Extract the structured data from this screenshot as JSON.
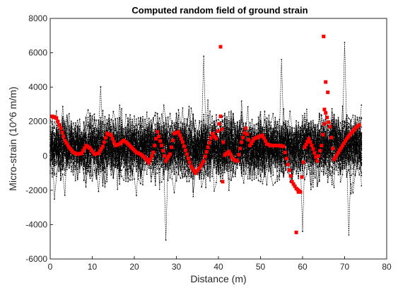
{
  "chart_data": {
    "type": "scatter",
    "title": "Computed random field of ground strain",
    "xlabel": "Distance (m)",
    "ylabel": "Micro-strain (10^6 m/m)",
    "xlim": [
      0,
      80
    ],
    "ylim": [
      -6000,
      8000
    ],
    "x_ticks": [
      0,
      10,
      20,
      30,
      40,
      50,
      60,
      70,
      80
    ],
    "y_ticks": [
      -6000,
      -4000,
      -2000,
      0,
      2000,
      4000,
      6000,
      8000
    ],
    "x_tick_labels": [
      "0",
      "10",
      "20",
      "30",
      "40",
      "50",
      "60",
      "70",
      "80"
    ],
    "y_tick_labels": [
      "-6000",
      "-4000",
      "-2000",
      "0",
      "2000",
      "4000",
      "6000",
      "8000"
    ],
    "grid": false,
    "colors": {
      "realizations": "#000000",
      "mean": "#ff0000",
      "axis": "#262626"
    },
    "series": [
      {
        "style": "black dotted markers with dashed lines (many random realizations)",
        "x_range": [
          0,
          74
        ],
        "band": [
          -1800,
          2800
        ],
        "extremes": [
          {
            "x": 36.5,
            "y": 5800
          },
          {
            "x": 55.0,
            "y": 5600
          },
          {
            "x": 70.0,
            "y": 6600
          },
          {
            "x": 27.5,
            "y": -4900
          },
          {
            "x": 71.0,
            "y": -4600
          },
          {
            "x": 60.0,
            "y": -4400
          }
        ]
      },
      {
        "style": "red square markers (computed field)",
        "x": [
          0.5,
          1.5,
          2.5,
          3.5,
          4.5,
          5.5,
          6.5,
          7.5,
          8.5,
          9.5,
          10.5,
          11.5,
          12.5,
          13.5,
          14.5,
          15.5,
          16.5,
          17.5,
          18.5,
          19.5,
          20.5,
          21.5,
          22.5,
          23.5,
          24.5,
          25.5,
          26.5,
          27.5,
          28.5,
          29.5,
          30.5,
          31.5,
          32.5,
          33.5,
          34.5,
          35.5,
          36.5,
          37.5,
          38.5,
          39.5,
          40.5,
          41.5,
          42.5,
          43.5,
          44.5,
          45.5,
          46.5,
          47.5,
          48.5,
          49.5,
          50.5,
          51.5,
          52.5,
          53.5,
          54.5,
          55.5,
          56.5,
          57.5,
          58.5,
          59.5,
          60.5,
          61.5,
          62.5,
          63.5,
          64.5,
          65.5,
          66.5,
          67.5,
          68.5,
          69.5,
          70.5,
          71.5,
          72.5,
          73.5
        ],
        "y": [
          2300,
          2200,
          1600,
          900,
          500,
          200,
          100,
          150,
          600,
          450,
          100,
          150,
          550,
          1300,
          1200,
          600,
          700,
          900,
          700,
          450,
          200,
          100,
          -100,
          -400,
          200,
          1400,
          600,
          -300,
          100,
          1300,
          1400,
          800,
          100,
          -600,
          -1000,
          -700,
          -300,
          500,
          1300,
          1000,
          2300,
          50,
          250,
          -200,
          -300,
          800,
          1600,
          600,
          1000,
          1100,
          1200,
          700,
          600,
          600,
          600,
          550,
          -500,
          -1500,
          -1900,
          -2100,
          500,
          1000,
          400,
          -300,
          600,
          2500,
          1700,
          -200,
          200,
          600,
          1000,
          1300,
          1600,
          1800
        ],
        "outliers": [
          {
            "x": 40.5,
            "y": 6350
          },
          {
            "x": 41.0,
            "y": -1500
          },
          {
            "x": 58.5,
            "y": -4450
          },
          {
            "x": 59.0,
            "y": -2100
          },
          {
            "x": 65.0,
            "y": 6950
          },
          {
            "x": 65.5,
            "y": 4300
          },
          {
            "x": 66.0,
            "y": 3700
          },
          {
            "x": 65.2,
            "y": 2700
          }
        ]
      }
    ]
  }
}
